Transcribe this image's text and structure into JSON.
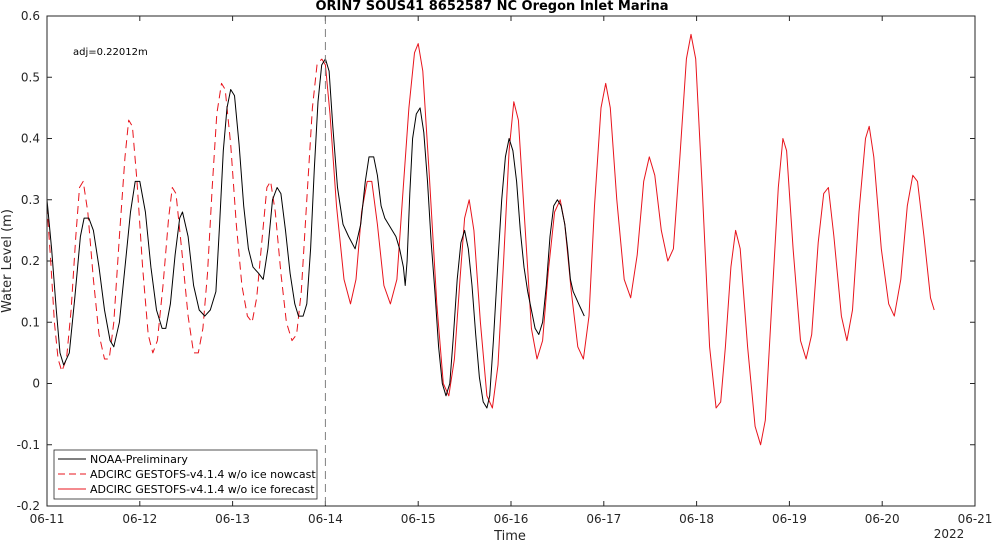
{
  "chart_data": {
    "type": "line",
    "title": "ORIN7 SOUS41 8652587 NC Oregon Inlet Marina",
    "xlabel": "Time",
    "ylabel": "Water Level (m)",
    "x_range_days": [
      "06-11",
      "06-21"
    ],
    "ylim": [
      -0.2,
      0.6
    ],
    "x_ticks": [
      "06-11",
      "06-12",
      "06-13",
      "06-14",
      "06-15",
      "06-16",
      "06-17",
      "06-18",
      "06-19",
      "06-20",
      "06-21"
    ],
    "x_year_label": "2022",
    "y_ticks": [
      "-0.2",
      "-0.1",
      "0",
      "0.1",
      "0.2",
      "0.3",
      "0.4",
      "0.5",
      "0.6"
    ],
    "annotation": "adj=0.22012m",
    "forecast_start": "06-14",
    "grid": false,
    "legend_position": "bottom-left",
    "series": [
      {
        "name": "NOAA-Preliminary",
        "color": "#000000",
        "dash": "solid",
        "points": [
          [
            0.0,
            0.3
          ],
          [
            0.05,
            0.22
          ],
          [
            0.1,
            0.12
          ],
          [
            0.14,
            0.05
          ],
          [
            0.18,
            0.03
          ],
          [
            0.24,
            0.05
          ],
          [
            0.3,
            0.14
          ],
          [
            0.36,
            0.24
          ],
          [
            0.4,
            0.27
          ],
          [
            0.45,
            0.27
          ],
          [
            0.5,
            0.25
          ],
          [
            0.56,
            0.19
          ],
          [
            0.62,
            0.12
          ],
          [
            0.68,
            0.07
          ],
          [
            0.72,
            0.06
          ],
          [
            0.78,
            0.1
          ],
          [
            0.84,
            0.19
          ],
          [
            0.9,
            0.28
          ],
          [
            0.95,
            0.33
          ],
          [
            1.0,
            0.33
          ],
          [
            1.06,
            0.28
          ],
          [
            1.12,
            0.19
          ],
          [
            1.18,
            0.12
          ],
          [
            1.24,
            0.09
          ],
          [
            1.28,
            0.09
          ],
          [
            1.33,
            0.13
          ],
          [
            1.38,
            0.21
          ],
          [
            1.43,
            0.27
          ],
          [
            1.46,
            0.28
          ],
          [
            1.52,
            0.24
          ],
          [
            1.58,
            0.16
          ],
          [
            1.64,
            0.12
          ],
          [
            1.7,
            0.11
          ],
          [
            1.76,
            0.12
          ],
          [
            1.82,
            0.15
          ],
          [
            1.86,
            0.26
          ],
          [
            1.9,
            0.38
          ],
          [
            1.94,
            0.45
          ],
          [
            1.98,
            0.48
          ],
          [
            2.02,
            0.47
          ],
          [
            2.07,
            0.39
          ],
          [
            2.12,
            0.29
          ],
          [
            2.17,
            0.22
          ],
          [
            2.22,
            0.19
          ],
          [
            2.28,
            0.18
          ],
          [
            2.33,
            0.17
          ],
          [
            2.38,
            0.22
          ],
          [
            2.43,
            0.3
          ],
          [
            2.48,
            0.32
          ],
          [
            2.52,
            0.31
          ],
          [
            2.57,
            0.25
          ],
          [
            2.62,
            0.18
          ],
          [
            2.67,
            0.13
          ],
          [
            2.71,
            0.11
          ],
          [
            2.76,
            0.11
          ],
          [
            2.8,
            0.13
          ],
          [
            2.84,
            0.22
          ],
          [
            2.88,
            0.35
          ],
          [
            2.92,
            0.46
          ],
          [
            2.96,
            0.52
          ],
          [
            3.0,
            0.53
          ],
          [
            3.04,
            0.51
          ],
          [
            3.08,
            0.42
          ],
          [
            3.13,
            0.32
          ],
          [
            3.19,
            0.26
          ],
          [
            3.25,
            0.24
          ],
          [
            3.32,
            0.22
          ],
          [
            3.38,
            0.26
          ],
          [
            3.43,
            0.33
          ],
          [
            3.47,
            0.37
          ],
          [
            3.52,
            0.37
          ],
          [
            3.56,
            0.34
          ],
          [
            3.6,
            0.29
          ],
          [
            3.64,
            0.27
          ],
          [
            3.68,
            0.26
          ],
          [
            3.72,
            0.25
          ],
          [
            3.76,
            0.24
          ],
          [
            3.8,
            0.22
          ],
          [
            3.84,
            0.19
          ],
          [
            3.86,
            0.16
          ],
          [
            3.88,
            0.2
          ],
          [
            3.91,
            0.31
          ],
          [
            3.94,
            0.4
          ],
          [
            3.98,
            0.44
          ],
          [
            4.02,
            0.45
          ],
          [
            4.06,
            0.41
          ],
          [
            4.1,
            0.33
          ],
          [
            4.14,
            0.23
          ],
          [
            4.18,
            0.15
          ],
          [
            4.22,
            0.06
          ],
          [
            4.26,
            0.0
          ],
          [
            4.3,
            -0.02
          ],
          [
            4.34,
            0.0
          ],
          [
            4.38,
            0.08
          ],
          [
            4.42,
            0.17
          ],
          [
            4.46,
            0.23
          ],
          [
            4.5,
            0.25
          ],
          [
            4.54,
            0.22
          ],
          [
            4.58,
            0.16
          ],
          [
            4.62,
            0.08
          ],
          [
            4.66,
            0.01
          ],
          [
            4.7,
            -0.03
          ],
          [
            4.74,
            -0.04
          ],
          [
            4.77,
            -0.02
          ],
          [
            4.81,
            0.07
          ],
          [
            4.86,
            0.2
          ],
          [
            4.9,
            0.3
          ],
          [
            4.94,
            0.37
          ],
          [
            4.98,
            0.4
          ],
          [
            5.02,
            0.38
          ],
          [
            5.06,
            0.33
          ],
          [
            5.1,
            0.25
          ],
          [
            5.14,
            0.19
          ],
          [
            5.18,
            0.15
          ],
          [
            5.22,
            0.12
          ],
          [
            5.26,
            0.09
          ],
          [
            5.3,
            0.08
          ],
          [
            5.34,
            0.1
          ],
          [
            5.38,
            0.16
          ],
          [
            5.42,
            0.24
          ],
          [
            5.46,
            0.29
          ],
          [
            5.5,
            0.3
          ],
          [
            5.54,
            0.29
          ],
          [
            5.58,
            0.26
          ],
          [
            5.61,
            0.22
          ],
          [
            5.64,
            0.17
          ],
          [
            5.67,
            0.15
          ],
          [
            5.7,
            0.14
          ],
          [
            5.73,
            0.13
          ],
          [
            5.76,
            0.12
          ],
          [
            5.79,
            0.11
          ]
        ]
      },
      {
        "name": "ADCIRC GESTOFS-v4.1.4 w/o ice nowcast",
        "color": "#e8141c",
        "dash": "dashed",
        "points": [
          [
            0.0,
            0.29
          ],
          [
            0.04,
            0.2
          ],
          [
            0.08,
            0.1
          ],
          [
            0.12,
            0.04
          ],
          [
            0.16,
            0.02
          ],
          [
            0.21,
            0.04
          ],
          [
            0.26,
            0.12
          ],
          [
            0.31,
            0.24
          ],
          [
            0.35,
            0.32
          ],
          [
            0.39,
            0.33
          ],
          [
            0.44,
            0.28
          ],
          [
            0.5,
            0.17
          ],
          [
            0.56,
            0.08
          ],
          [
            0.62,
            0.04
          ],
          [
            0.67,
            0.04
          ],
          [
            0.72,
            0.1
          ],
          [
            0.78,
            0.24
          ],
          [
            0.84,
            0.37
          ],
          [
            0.88,
            0.43
          ],
          [
            0.92,
            0.42
          ],
          [
            0.97,
            0.33
          ],
          [
            1.03,
            0.19
          ],
          [
            1.09,
            0.08
          ],
          [
            1.14,
            0.05
          ],
          [
            1.19,
            0.07
          ],
          [
            1.25,
            0.16
          ],
          [
            1.31,
            0.27
          ],
          [
            1.35,
            0.32
          ],
          [
            1.39,
            0.31
          ],
          [
            1.45,
            0.22
          ],
          [
            1.52,
            0.11
          ],
          [
            1.58,
            0.05
          ],
          [
            1.63,
            0.05
          ],
          [
            1.68,
            0.09
          ],
          [
            1.73,
            0.18
          ],
          [
            1.78,
            0.32
          ],
          [
            1.83,
            0.44
          ],
          [
            1.88,
            0.49
          ],
          [
            1.92,
            0.48
          ],
          [
            1.98,
            0.39
          ],
          [
            2.04,
            0.26
          ],
          [
            2.1,
            0.16
          ],
          [
            2.16,
            0.11
          ],
          [
            2.21,
            0.1
          ],
          [
            2.26,
            0.14
          ],
          [
            2.32,
            0.24
          ],
          [
            2.37,
            0.32
          ],
          [
            2.41,
            0.33
          ],
          [
            2.46,
            0.28
          ],
          [
            2.52,
            0.18
          ],
          [
            2.58,
            0.1
          ],
          [
            2.64,
            0.07
          ],
          [
            2.69,
            0.08
          ],
          [
            2.74,
            0.15
          ],
          [
            2.8,
            0.3
          ],
          [
            2.86,
            0.45
          ],
          [
            2.91,
            0.52
          ],
          [
            2.96,
            0.53
          ]
        ]
      },
      {
        "name": "ADCIRC GESTOFS-v4.1.4 w/o ice forecast",
        "color": "#e8141c",
        "dash": "solid",
        "points": [
          [
            2.96,
            0.53
          ],
          [
            3.0,
            0.52
          ],
          [
            3.05,
            0.44
          ],
          [
            3.12,
            0.29
          ],
          [
            3.2,
            0.17
          ],
          [
            3.27,
            0.13
          ],
          [
            3.33,
            0.17
          ],
          [
            3.39,
            0.28
          ],
          [
            3.45,
            0.33
          ],
          [
            3.5,
            0.33
          ],
          [
            3.56,
            0.26
          ],
          [
            3.63,
            0.16
          ],
          [
            3.7,
            0.13
          ],
          [
            3.77,
            0.17
          ],
          [
            3.83,
            0.3
          ],
          [
            3.9,
            0.45
          ],
          [
            3.96,
            0.54
          ],
          [
            4.0,
            0.555
          ],
          [
            4.05,
            0.51
          ],
          [
            4.12,
            0.34
          ],
          [
            4.2,
            0.13
          ],
          [
            4.27,
            0.0
          ],
          [
            4.33,
            -0.02
          ],
          [
            4.39,
            0.04
          ],
          [
            4.45,
            0.17
          ],
          [
            4.5,
            0.27
          ],
          [
            4.55,
            0.3
          ],
          [
            4.6,
            0.25
          ],
          [
            4.67,
            0.1
          ],
          [
            4.74,
            -0.02
          ],
          [
            4.8,
            -0.04
          ],
          [
            4.86,
            0.03
          ],
          [
            4.92,
            0.2
          ],
          [
            4.98,
            0.38
          ],
          [
            5.03,
            0.46
          ],
          [
            5.08,
            0.43
          ],
          [
            5.15,
            0.26
          ],
          [
            5.22,
            0.09
          ],
          [
            5.28,
            0.04
          ],
          [
            5.34,
            0.07
          ],
          [
            5.4,
            0.18
          ],
          [
            5.47,
            0.28
          ],
          [
            5.53,
            0.3
          ],
          [
            5.58,
            0.26
          ],
          [
            5.65,
            0.15
          ],
          [
            5.72,
            0.06
          ],
          [
            5.78,
            0.04
          ],
          [
            5.84,
            0.11
          ],
          [
            5.9,
            0.29
          ],
          [
            5.97,
            0.45
          ],
          [
            6.02,
            0.49
          ],
          [
            6.07,
            0.45
          ],
          [
            6.14,
            0.3
          ],
          [
            6.22,
            0.17
          ],
          [
            6.29,
            0.14
          ],
          [
            6.36,
            0.21
          ],
          [
            6.43,
            0.33
          ],
          [
            6.49,
            0.37
          ],
          [
            6.55,
            0.34
          ],
          [
            6.62,
            0.25
          ],
          [
            6.69,
            0.2
          ],
          [
            6.75,
            0.22
          ],
          [
            6.82,
            0.37
          ],
          [
            6.89,
            0.53
          ],
          [
            6.94,
            0.57
          ],
          [
            6.99,
            0.53
          ],
          [
            7.06,
            0.32
          ],
          [
            7.14,
            0.06
          ],
          [
            7.21,
            -0.04
          ],
          [
            7.26,
            -0.03
          ],
          [
            7.31,
            0.06
          ],
          [
            7.37,
            0.19
          ],
          [
            7.42,
            0.25
          ],
          [
            7.47,
            0.22
          ],
          [
            7.55,
            0.06
          ],
          [
            7.63,
            -0.07
          ],
          [
            7.69,
            -0.1
          ],
          [
            7.74,
            -0.06
          ],
          [
            7.81,
            0.13
          ],
          [
            7.88,
            0.32
          ],
          [
            7.93,
            0.4
          ],
          [
            7.97,
            0.38
          ],
          [
            8.04,
            0.22
          ],
          [
            8.12,
            0.07
          ],
          [
            8.18,
            0.04
          ],
          [
            8.24,
            0.08
          ],
          [
            8.31,
            0.23
          ],
          [
            8.37,
            0.31
          ],
          [
            8.42,
            0.32
          ],
          [
            8.48,
            0.24
          ],
          [
            8.56,
            0.11
          ],
          [
            8.62,
            0.07
          ],
          [
            8.68,
            0.12
          ],
          [
            8.75,
            0.28
          ],
          [
            8.82,
            0.4
          ],
          [
            8.86,
            0.42
          ],
          [
            8.91,
            0.37
          ],
          [
            8.99,
            0.22
          ],
          [
            9.07,
            0.13
          ],
          [
            9.13,
            0.11
          ],
          [
            9.2,
            0.17
          ],
          [
            9.27,
            0.29
          ],
          [
            9.33,
            0.34
          ],
          [
            9.38,
            0.33
          ],
          [
            9.45,
            0.24
          ],
          [
            9.52,
            0.14
          ],
          [
            9.56,
            0.12
          ]
        ]
      }
    ]
  }
}
